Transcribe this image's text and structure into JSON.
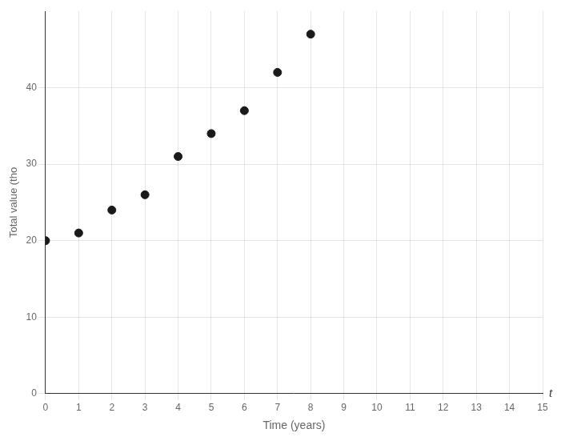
{
  "chart_data": {
    "type": "scatter",
    "x": [
      0,
      1,
      2,
      3,
      4,
      5,
      6,
      7,
      8
    ],
    "values": [
      20,
      21,
      24,
      26,
      31,
      34,
      37,
      42,
      47
    ],
    "color": "#1a1a1a",
    "marker": "circle",
    "x_label": "Time (years)",
    "y_label": "Total value (tho",
    "annotation": "t",
    "xlim": [
      0,
      15
    ],
    "ylim": [
      0,
      50
    ],
    "xticks": [
      0,
      1,
      2,
      3,
      4,
      5,
      6,
      7,
      8,
      9,
      10,
      11,
      12,
      13,
      14,
      15
    ],
    "yticks": [
      0,
      10,
      20,
      30,
      40
    ],
    "grid": true
  }
}
